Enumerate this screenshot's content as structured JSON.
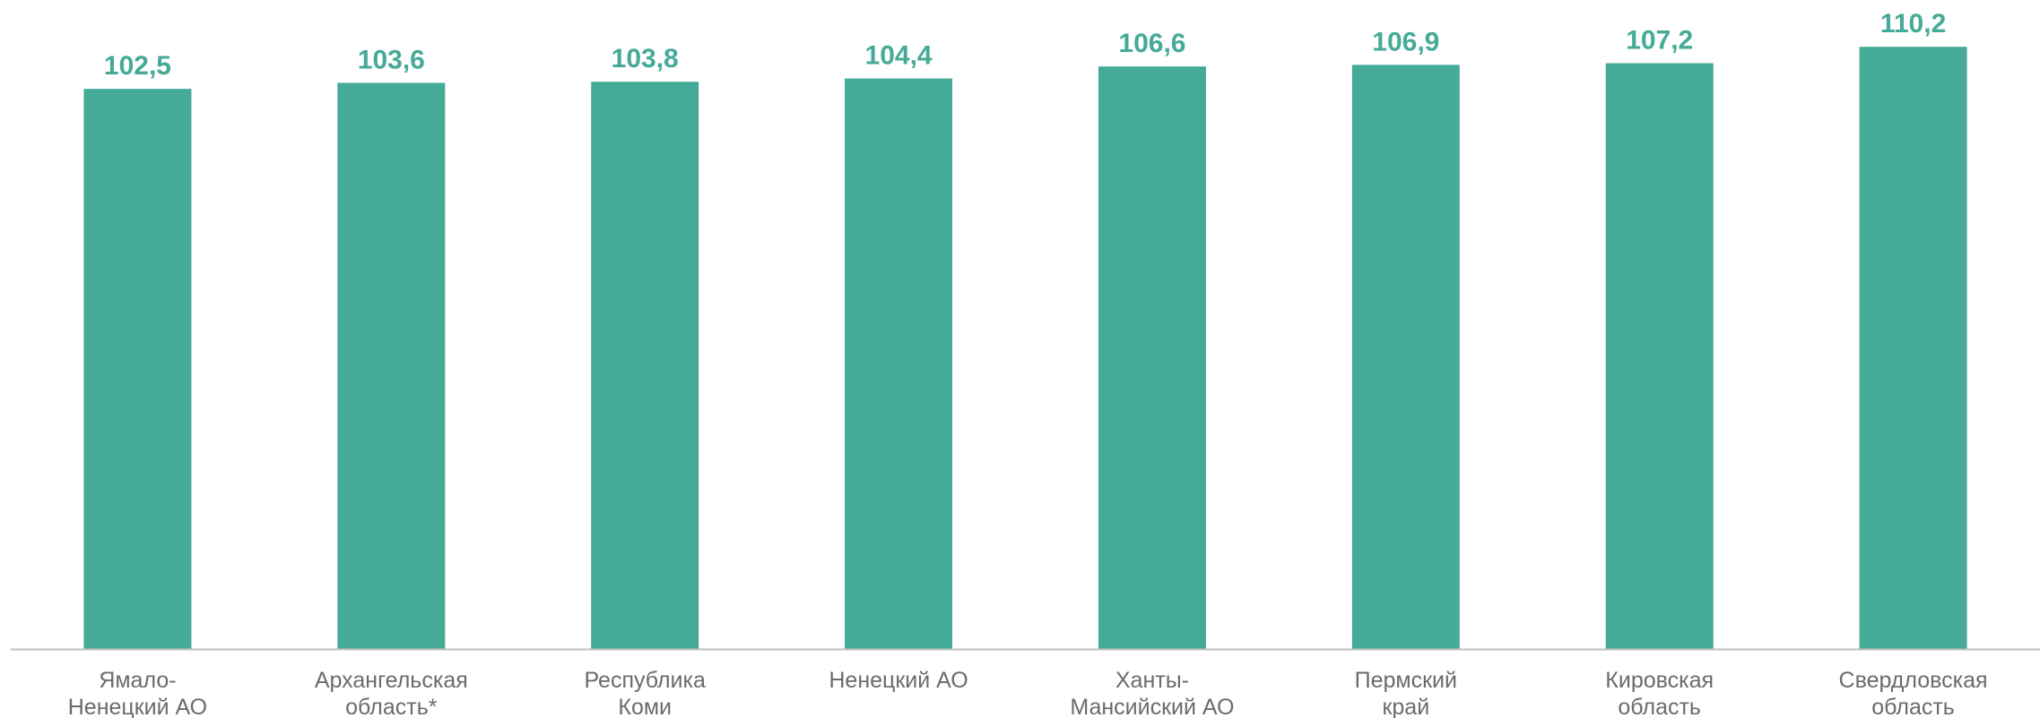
{
  "chart_data": {
    "type": "bar",
    "categories": [
      [
        "Ямало-",
        "Ненецкий АО"
      ],
      [
        "Архангельская",
        "область*"
      ],
      [
        "Республика",
        "Коми"
      ],
      [
        "Ненецкий АО"
      ],
      [
        "Ханты-",
        "Мансийский АО"
      ],
      [
        "Пермский",
        "край"
      ],
      [
        "Кировская",
        "область"
      ],
      [
        "Свердловская",
        "область"
      ]
    ],
    "values": [
      102.5,
      103.6,
      103.8,
      104.4,
      106.6,
      106.9,
      107.2,
      110.2
    ],
    "value_labels": [
      "102,5",
      "103,6",
      "103,8",
      "104,4",
      "106,6",
      "106,9",
      "107,2",
      "110,2"
    ],
    "baseline": 0,
    "ylim": [
      0,
      114
    ],
    "grid": false,
    "legend": "none",
    "colors": {
      "bar": "#45aa97",
      "value_label": "#45aa97",
      "axis": "#bfbfbf",
      "category_label": "#6b6b6b"
    }
  }
}
